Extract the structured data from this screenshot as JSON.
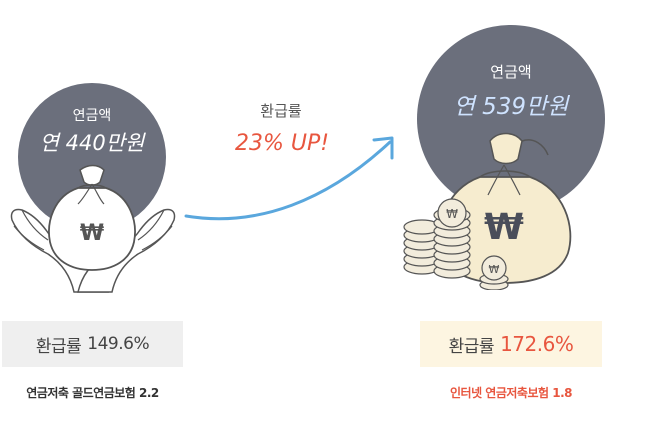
{
  "left": {
    "circle_title": "연금액",
    "circle_amount": "연 440만원",
    "rate_label": "환급률",
    "rate_value": "149.6%",
    "product_name": "연금저축 골드연금보험 2.2",
    "icon": "money-bag-in-hands-icon"
  },
  "middle": {
    "title": "환급률",
    "highlight": "23% UP!",
    "icon": "curved-arrow-icon"
  },
  "right": {
    "circle_title": "연금액",
    "circle_amount": "연 539만원",
    "rate_label": "환급률",
    "rate_value": "172.6%",
    "product_name": "인터넷 연금저축보험 1.8",
    "icon": "money-bag-with-coins-icon"
  },
  "colors": {
    "circle": "#6b6f7c",
    "accent_red": "#e8563f",
    "arrow_blue": "#5aa7dd",
    "right_amount": "#cfe3ff",
    "left_box": "#efefef",
    "right_box": "#fdf5e1"
  }
}
